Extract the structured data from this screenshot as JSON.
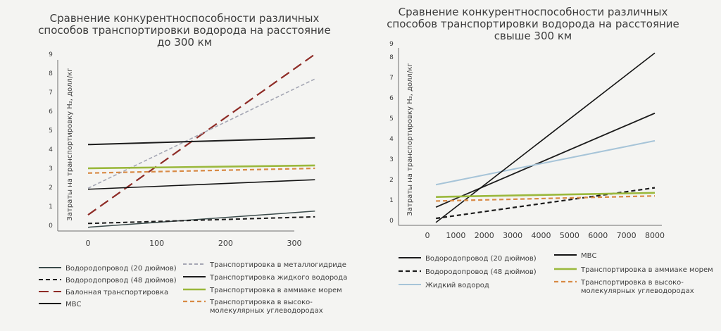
{
  "colors": {
    "background": "#f4f4f2",
    "axis": "#6e6e6e",
    "pipeline": "#3a4a4a",
    "balloon": "#8e2b26",
    "hydride": "#a5a7b4",
    "liquid": "#1c1c1c",
    "ammonia": "#9ab83c",
    "lohc": "#d88a45",
    "mvs": "#141414",
    "liquid_h2": "#a6c4d8"
  },
  "chart_data": [
    {
      "type": "line",
      "title": "Сравнение конкурентноспособности различных способов транспортировки водорода на расстояние до 300 км",
      "title_lines": [
        "Сравнение конкурентноспособности различных",
        "способов транспортировки водорода на расстояние",
        "до 300 км"
      ],
      "ylabel": "Затраты на транспортировку H₂, долл/кг",
      "xlabel": "",
      "xlim": [
        -20,
        340
      ],
      "ylim": [
        0,
        9
      ],
      "x_ticks": [
        0,
        100,
        200,
        300
      ],
      "y_ticks": [
        0,
        1,
        2,
        3,
        4,
        5,
        6,
        7,
        8,
        9
      ],
      "grid": false,
      "legend_position": "bottom",
      "series": [
        {
          "name": "Водородопровод (20 дюймов)",
          "x": [
            0,
            330
          ],
          "y": [
            -0.1,
            0.75
          ],
          "color": "#3a4a4a",
          "dash": "solid",
          "width": 1.5
        },
        {
          "name": "Водородопровод (48 дюймов)",
          "x": [
            0,
            330
          ],
          "y": [
            0.1,
            0.45
          ],
          "color": "#1c1c1c",
          "dash": "dashed",
          "width": 2
        },
        {
          "name": "Балонная транспортировка",
          "x": [
            0,
            330
          ],
          "y": [
            0.55,
            9.0
          ],
          "color": "#8e2b26",
          "dash": "longdash",
          "width": 2.2
        },
        {
          "name": "МВС",
          "x": [
            0,
            330
          ],
          "y": [
            1.9,
            2.4
          ],
          "color": "#141414",
          "dash": "solid",
          "width": 1.6
        },
        {
          "name": "Транспортировка в металлогидриде",
          "x": [
            0,
            330
          ],
          "y": [
            1.95,
            7.7
          ],
          "color": "#a5a7b4",
          "dash": "shortdash",
          "width": 1.6
        },
        {
          "name": "Транспортировка жидкого водорода",
          "x": [
            0,
            330
          ],
          "y": [
            4.25,
            4.6
          ],
          "color": "#1c1c1c",
          "dash": "solid",
          "width": 2
        },
        {
          "name": "Транспортировка в аммиаке морем",
          "x": [
            0,
            330
          ],
          "y": [
            3.0,
            3.15
          ],
          "color": "#9ab83c",
          "dash": "solid",
          "width": 2.6
        },
        {
          "name": "Транспортировка в высоко-молекулярных углеводородах",
          "x": [
            0,
            330
          ],
          "y": [
            2.75,
            3.0
          ],
          "color": "#d88a45",
          "dash": "dashed",
          "width": 2.2
        }
      ],
      "legend": [
        {
          "label": "Водородопровод (20 дюймов)",
          "color": "#3a4a4a",
          "dash": "solid",
          "width": 2
        },
        {
          "label": "Водородопровод (48 дюймов)",
          "color": "#1c1c1c",
          "dash": "dashed",
          "width": 2
        },
        {
          "label": "Балонная транспортировка",
          "color": "#8e2b26",
          "dash": "longdash",
          "width": 2
        },
        {
          "label": "МВС",
          "color": "#141414",
          "dash": "solid",
          "width": 2
        },
        {
          "label": "Транспортировка в металлогидриде",
          "color": "#a5a7b4",
          "dash": "shortdash",
          "width": 2
        },
        {
          "label": "Транспортировка жидкого водорода",
          "color": "#1c1c1c",
          "dash": "solid",
          "width": 2
        },
        {
          "label": "Транспортировка в аммиаке морем",
          "color": "#9ab83c",
          "dash": "solid",
          "width": 2.6
        },
        {
          "label": "Транспортировка в высоко-",
          "label_line2": "молекулярных углеводородах",
          "color": "#d88a45",
          "dash": "dashed",
          "width": 2.2
        }
      ]
    },
    {
      "type": "line",
      "title": "Сравнение конкурентноспособности различных способов транспортировки водорода на расстояние свыше 300 км",
      "title_lines": [
        "Сравнение конкурентноспособности различных",
        "способов транспортировки водорода на расстояние",
        "свыше 300 км"
      ],
      "ylabel": "Затраты на транспортировку H₂, долл/кг",
      "xlabel": "",
      "xlim": [
        -150,
        8300
      ],
      "ylim": [
        0,
        9
      ],
      "x_ticks": [
        0,
        1000,
        2000,
        3000,
        4000,
        5000,
        6000,
        7000,
        8000
      ],
      "y_ticks": [
        0,
        1,
        2,
        3,
        4,
        5,
        6,
        7,
        8,
        9
      ],
      "grid": false,
      "legend_position": "bottom",
      "series": [
        {
          "name": "Водородопровод (20 дюймов)",
          "x": [
            300,
            8000
          ],
          "y": [
            0.65,
            5.25
          ],
          "color": "#1c1c1c",
          "dash": "solid",
          "width": 1.8
        },
        {
          "name": "Водородопровод (48 дюймов)",
          "x": [
            300,
            8000
          ],
          "y": [
            0.1,
            1.6
          ],
          "color": "#1c1c1c",
          "dash": "dashed",
          "width": 2.2
        },
        {
          "name": "Жидкий водород",
          "x": [
            300,
            8000
          ],
          "y": [
            1.75,
            3.9
          ],
          "color": "#a6c4d8",
          "dash": "solid",
          "width": 2
        },
        {
          "name": "МВС",
          "x": [
            300,
            8000
          ],
          "y": [
            -0.1,
            8.3
          ],
          "color": "#141414",
          "dash": "solid",
          "width": 1.6
        },
        {
          "name": "Транспортировка в аммиаке морем",
          "x": [
            300,
            8000
          ],
          "y": [
            1.15,
            1.35
          ],
          "color": "#9ab83c",
          "dash": "solid",
          "width": 2.6
        },
        {
          "name": "Транспортировка в высоко-молекулярных углеводородах",
          "x": [
            300,
            8000
          ],
          "y": [
            0.95,
            1.2
          ],
          "color": "#d88a45",
          "dash": "dashed",
          "width": 2.2
        }
      ],
      "legend": [
        {
          "label": "Водородопровод (20 дюймов)",
          "color": "#1c1c1c",
          "dash": "solid",
          "width": 2
        },
        {
          "label": "Водородопровод (48 дюймов)",
          "color": "#1c1c1c",
          "dash": "dashed",
          "width": 2.2
        },
        {
          "label": "Жидкий водород",
          "color": "#a6c4d8",
          "dash": "solid",
          "width": 2
        },
        {
          "label": "МВС",
          "color": "#141414",
          "dash": "solid",
          "width": 2
        },
        {
          "label": "Транспортировка в аммиаке морем",
          "color": "#9ab83c",
          "dash": "solid",
          "width": 2.6
        },
        {
          "label": "Транспортировка в высоко-",
          "label_line2": "молекулярных углеводородах",
          "color": "#d88a45",
          "dash": "dashed",
          "width": 2.2
        }
      ]
    }
  ]
}
